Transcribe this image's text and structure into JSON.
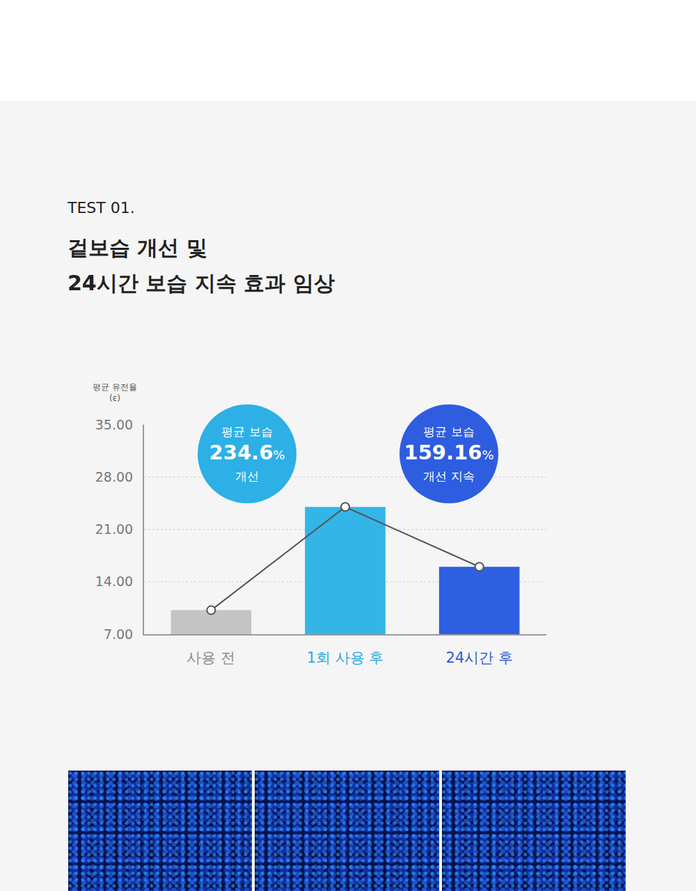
{
  "header": {
    "label": "TEST 01.",
    "title": [
      "겉보습 개선 및",
      "24시간 보습 지속 효과 임상"
    ]
  },
  "chart_data": {
    "type": "bar",
    "y_label": [
      "평균 유전율",
      "(ε)"
    ],
    "categories": [
      "사용 전",
      "1회 사용 후",
      "24시간 후"
    ],
    "series": [
      {
        "type": "bar",
        "colors": [
          "#c4c4c4",
          "#33b5e8",
          "#2e5fe0"
        ],
        "values": [
          10.2,
          24.0,
          16.0
        ]
      },
      {
        "type": "line",
        "color": "#555555",
        "marker": "circle",
        "values": [
          10.2,
          24.0,
          16.0
        ]
      }
    ],
    "ylim": [
      7,
      35
    ],
    "yticks": [
      {
        "value": 7,
        "label": "7.00"
      },
      {
        "value": 14,
        "label": "14.00"
      },
      {
        "value": 21,
        "label": "21.00"
      },
      {
        "value": 28,
        "label": "28.00"
      },
      {
        "value": 35,
        "label": "35.00"
      }
    ],
    "grid": true,
    "annotations": [
      {
        "lines": [
          "평균 보습",
          "234.6%",
          "개선"
        ],
        "color": "#2cb0e6"
      },
      {
        "lines": [
          "평균 보습",
          "159.16%",
          "개선 지속"
        ],
        "color": "#2e5de0"
      }
    ]
  }
}
